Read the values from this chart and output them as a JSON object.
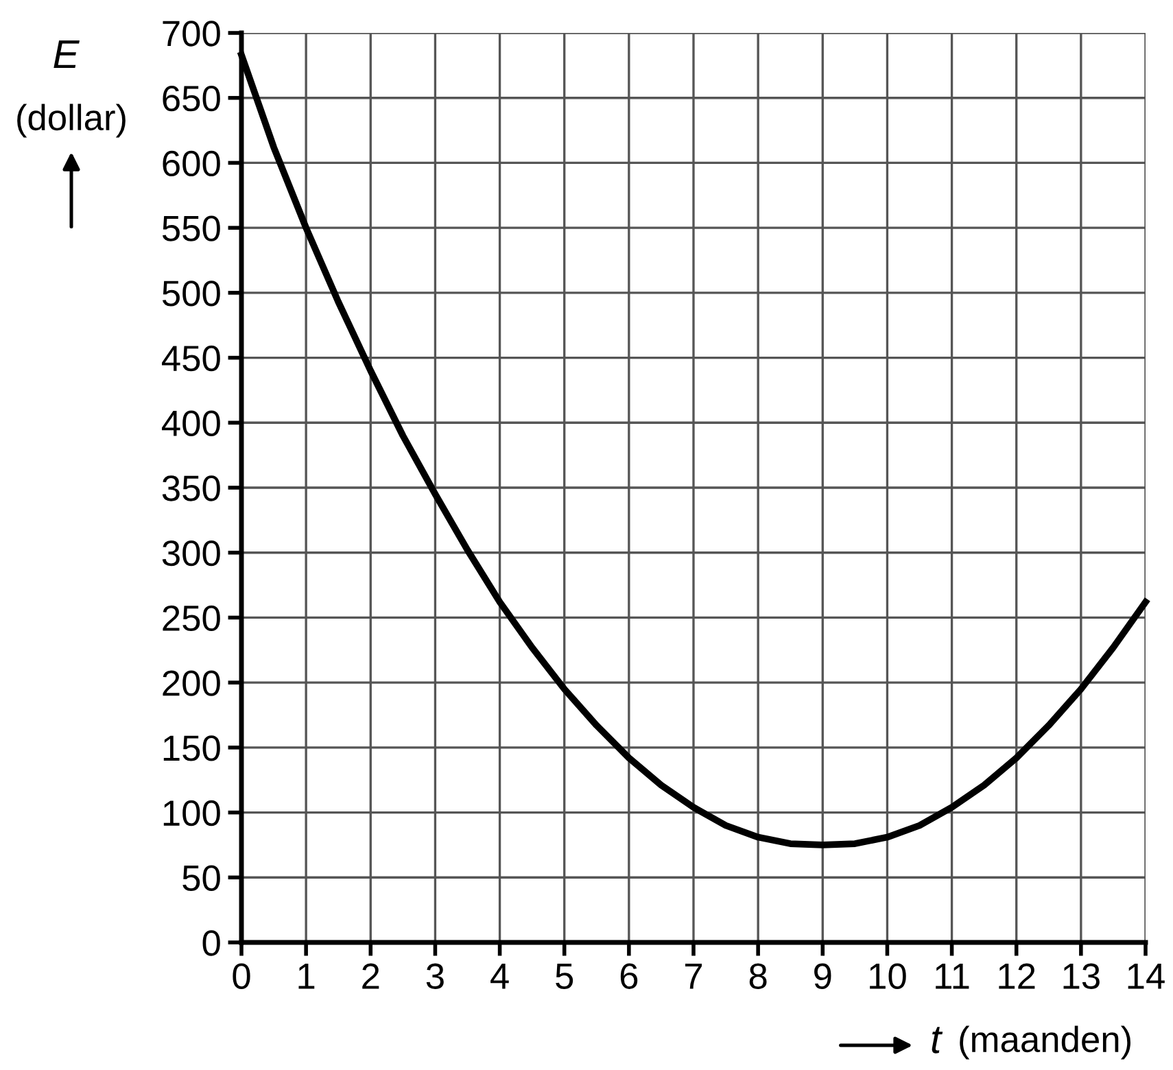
{
  "chart_data": {
    "type": "line",
    "xlabel": "t (maanden)",
    "ylabel": "E (dollar)",
    "x": [
      0,
      0.5,
      1,
      1.5,
      2,
      2.5,
      3,
      3.5,
      4,
      4.5,
      5,
      5.5,
      6,
      6.5,
      7,
      7.5,
      8,
      8.5,
      9,
      9.5,
      10,
      10.5,
      11,
      11.5,
      12,
      12.5,
      13,
      13.5,
      14
    ],
    "series": [
      {
        "color": "#000000",
        "values": [
          683,
          612,
          550,
          493,
          440,
          390,
          345,
          302,
          262,
          227,
          195,
          167,
          142,
          121,
          104,
          90,
          81,
          76,
          75,
          76,
          81,
          90,
          104,
          121,
          142,
          167,
          195,
          227,
          262
        ]
      }
    ],
    "xlim": [
      0,
      14
    ],
    "ylim": [
      0,
      700
    ],
    "xticks": [
      0,
      1,
      2,
      3,
      4,
      5,
      6,
      7,
      8,
      9,
      10,
      11,
      12,
      13,
      14
    ],
    "yticks": [
      0,
      50,
      100,
      150,
      200,
      250,
      300,
      350,
      400,
      450,
      500,
      550,
      600,
      650,
      700
    ],
    "grid": true,
    "marker": "none",
    "line_style": "solid"
  }
}
